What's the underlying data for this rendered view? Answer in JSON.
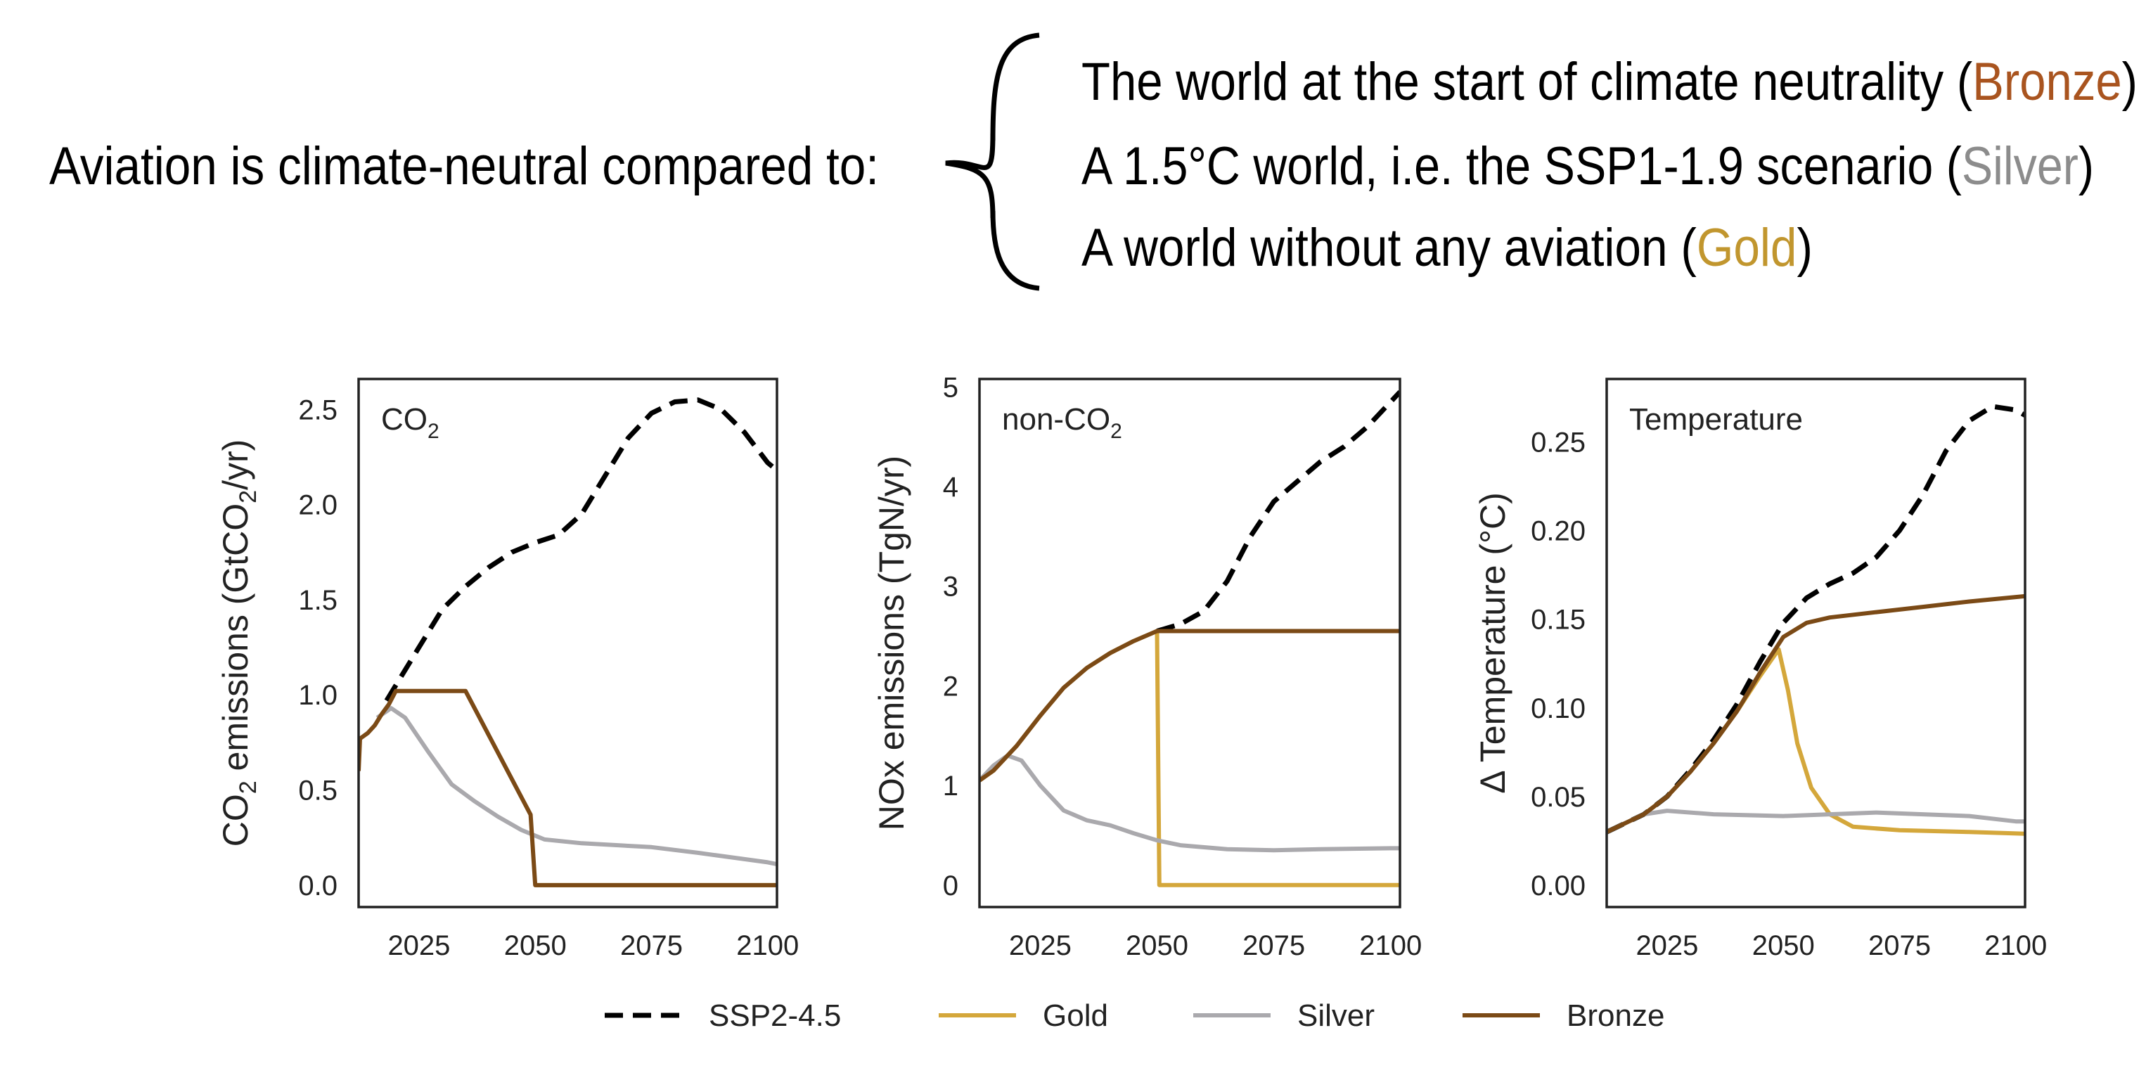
{
  "header": {
    "lead": "Aviation is climate-neutral compared to:",
    "lines": [
      {
        "pre": "The world at the start of climate neutrality (",
        "key": "Bronze",
        "post": ")",
        "color": "#a9541f"
      },
      {
        "pre": "A 1.5°C world, i.e. the SSP1-1.9 scenario (",
        "key": "Silver",
        "post": ")",
        "color": "#8c8c8c"
      },
      {
        "pre": "A world without any aviation (",
        "key": "Gold",
        "post": ")",
        "color": "#c1962e"
      }
    ]
  },
  "colors": {
    "SSP2-4.5": "#000000",
    "Gold": "#d4a73b",
    "Silver": "#aaa9ad",
    "Bronze": "#7b4a16"
  },
  "legend": [
    "SSP2-4.5",
    "Gold",
    "Silver",
    "Bronze"
  ],
  "chart_data": [
    {
      "type": "line",
      "title": "CO2",
      "title_main": "CO",
      "title_sub": "2",
      "ylabel_main": "CO",
      "ylabel_sub": "2",
      "ylabel_rest": " emissions (GtCO",
      "ylabel_sub2": "2",
      "ylabel_end": "/yr)",
      "xlim": [
        2012,
        2102
      ],
      "ylim": [
        -0.115,
        2.66
      ],
      "xticks": [
        2025,
        2050,
        2075,
        2100
      ],
      "xtick_labels": [
        "2025",
        "2050",
        "2075",
        "2100"
      ],
      "yticks": [
        0,
        0.5,
        1,
        1.5,
        2,
        2.5
      ],
      "ytick_labels": [
        "0.0",
        "0.5",
        "1.0",
        "1.5",
        "2.0",
        "2.5"
      ],
      "grid": false,
      "series": [
        {
          "name": "SSP2-4.5",
          "dashed": true,
          "x": [
            2018,
            2020,
            2025,
            2030,
            2035,
            2040,
            2045,
            2050,
            2055,
            2060,
            2065,
            2070,
            2075,
            2080,
            2085,
            2090,
            2095,
            2100,
            2102
          ],
          "y": [
            0.97,
            1.05,
            1.25,
            1.45,
            1.57,
            1.67,
            1.75,
            1.8,
            1.84,
            1.95,
            2.15,
            2.35,
            2.48,
            2.54,
            2.55,
            2.5,
            2.38,
            2.22,
            2.18
          ]
        },
        {
          "name": "Silver",
          "x": [
            2016,
            2019,
            2022,
            2027,
            2032,
            2037,
            2042,
            2047,
            2052,
            2060,
            2075,
            2085,
            2100,
            2102
          ],
          "y": [
            0.88,
            0.93,
            0.88,
            0.7,
            0.53,
            0.44,
            0.36,
            0.29,
            0.24,
            0.22,
            0.2,
            0.17,
            0.12,
            0.11
          ]
        },
        {
          "name": "Gold",
          "x": [
            2050,
            2102
          ],
          "y": [
            0,
            0
          ]
        },
        {
          "name": "Bronze",
          "x": [
            2012,
            2012.3,
            2014,
            2015.5,
            2017,
            2018.5,
            2020,
            2035,
            2049,
            2050,
            2102
          ],
          "y": [
            0.6,
            0.77,
            0.8,
            0.84,
            0.9,
            0.95,
            1.02,
            1.02,
            0.37,
            0,
            0
          ]
        }
      ]
    },
    {
      "type": "line",
      "title": "non-CO2",
      "title_main": "non-CO",
      "title_sub": "2",
      "ylabel": "NOx emissions (TgN/yr)",
      "xlim": [
        2012,
        2102
      ],
      "ylim": [
        -0.22,
        5.08
      ],
      "xticks": [
        2025,
        2050,
        2075,
        2100
      ],
      "xtick_labels": [
        "2025",
        "2050",
        "2075",
        "2100"
      ],
      "yticks": [
        0,
        1,
        2,
        3,
        4,
        5
      ],
      "ytick_labels": [
        "0",
        "1",
        "2",
        "3",
        "4",
        "5"
      ],
      "grid": false,
      "series": [
        {
          "name": "SSP2-4.5",
          "dashed": true,
          "x": [
            2050,
            2055,
            2060,
            2065,
            2070,
            2075,
            2080,
            2085,
            2090,
            2095,
            2100,
            2102
          ],
          "y": [
            2.55,
            2.62,
            2.75,
            3.05,
            3.5,
            3.85,
            4.05,
            4.25,
            4.4,
            4.6,
            4.85,
            4.95
          ]
        },
        {
          "name": "Gold",
          "x": [
            2012,
            2015,
            2020,
            2025,
            2030,
            2035,
            2040,
            2045,
            2050,
            2050.5,
            2102
          ],
          "y": [
            1.05,
            1.15,
            1.4,
            1.7,
            1.98,
            2.18,
            2.33,
            2.45,
            2.55,
            0,
            0
          ]
        },
        {
          "name": "Silver",
          "x": [
            2012,
            2015,
            2018,
            2021,
            2025,
            2030,
            2035,
            2040,
            2045,
            2050,
            2055,
            2065,
            2075,
            2085,
            2100,
            2102
          ],
          "y": [
            1.05,
            1.2,
            1.3,
            1.25,
            1.0,
            0.75,
            0.65,
            0.6,
            0.52,
            0.45,
            0.4,
            0.36,
            0.35,
            0.36,
            0.37,
            0.37
          ]
        },
        {
          "name": "Bronze",
          "x": [
            2012,
            2015,
            2020,
            2025,
            2030,
            2035,
            2040,
            2045,
            2050,
            2102
          ],
          "y": [
            1.05,
            1.15,
            1.4,
            1.7,
            1.98,
            2.18,
            2.33,
            2.45,
            2.55,
            2.55
          ]
        }
      ]
    },
    {
      "type": "line",
      "title": "Temperature",
      "ylabel": "Δ Temperature (°C)",
      "xlim": [
        2012,
        2102
      ],
      "ylim": [
        -0.0123,
        0.2855
      ],
      "xticks": [
        2025,
        2050,
        2075,
        2100
      ],
      "xtick_labels": [
        "2025",
        "2050",
        "2075",
        "2100"
      ],
      "yticks": [
        0,
        0.05,
        0.1,
        0.15,
        0.2,
        0.25
      ],
      "ytick_labels": [
        "0.00",
        "0.05",
        "0.10",
        "0.15",
        "0.20",
        "0.25"
      ],
      "grid": false,
      "series": [
        {
          "name": "SSP2-4.5",
          "dashed": true,
          "x": [
            2012,
            2020,
            2025,
            2030,
            2035,
            2040,
            2045,
            2050,
            2055,
            2060,
            2065,
            2070,
            2075,
            2080,
            2085,
            2090,
            2095,
            2100,
            2102
          ],
          "y": [
            0.03,
            0.04,
            0.05,
            0.065,
            0.082,
            0.102,
            0.126,
            0.148,
            0.162,
            0.17,
            0.176,
            0.185,
            0.2,
            0.22,
            0.245,
            0.262,
            0.27,
            0.268,
            0.265
          ]
        },
        {
          "name": "Gold",
          "x": [
            2012,
            2020,
            2025,
            2030,
            2035,
            2040,
            2045,
            2049,
            2051,
            2053,
            2056,
            2060,
            2065,
            2075,
            2090,
            2102
          ],
          "y": [
            0.03,
            0.04,
            0.05,
            0.064,
            0.08,
            0.098,
            0.118,
            0.133,
            0.11,
            0.08,
            0.055,
            0.04,
            0.033,
            0.031,
            0.03,
            0.029
          ]
        },
        {
          "name": "Silver",
          "x": [
            2012,
            2020,
            2025,
            2035,
            2050,
            2060,
            2070,
            2080,
            2090,
            2100,
            2102
          ],
          "y": [
            0.03,
            0.04,
            0.042,
            0.04,
            0.039,
            0.04,
            0.041,
            0.04,
            0.039,
            0.036,
            0.036
          ]
        },
        {
          "name": "Bronze",
          "x": [
            2012,
            2020,
            2025,
            2030,
            2035,
            2040,
            2045,
            2050,
            2055,
            2060,
            2070,
            2080,
            2090,
            2102
          ],
          "y": [
            0.03,
            0.04,
            0.05,
            0.064,
            0.08,
            0.098,
            0.12,
            0.14,
            0.148,
            0.151,
            0.154,
            0.157,
            0.16,
            0.163
          ]
        }
      ]
    }
  ]
}
